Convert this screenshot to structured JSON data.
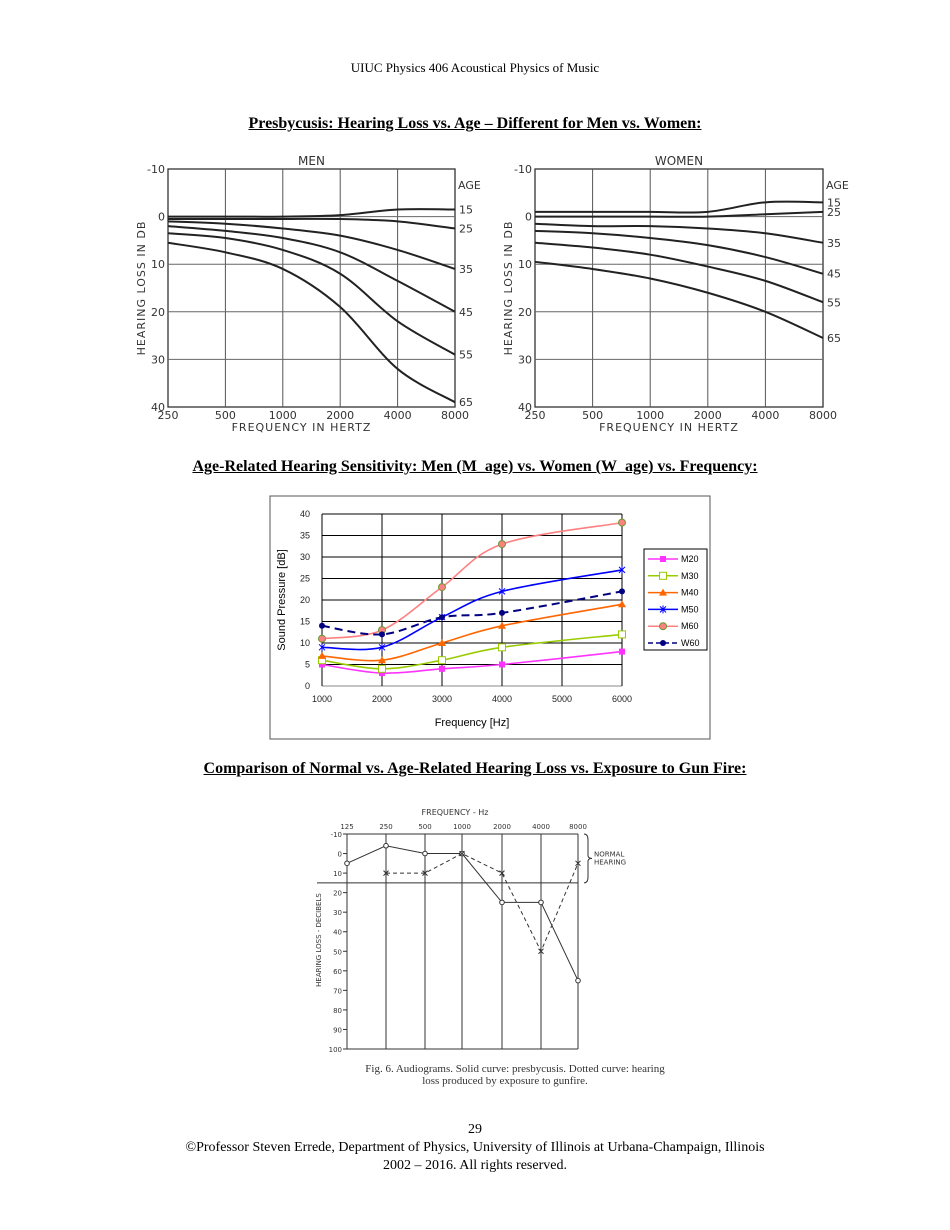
{
  "header": "UIUC Physics 406 Acoustical Physics of Music",
  "sections": [
    {
      "title": "Presbycusis: Hearing Loss vs. Age – Different for Men vs. Women:"
    },
    {
      "title": "Age-Related Hearing Sensitivity: Men (M_age) vs. Women (W_age) vs. Frequency:"
    },
    {
      "title": "Comparison of Normal vs. Age-Related Hearing Loss vs. Exposure to Gun Fire:"
    }
  ],
  "chart_data": [
    {
      "type": "line",
      "title": "MEN",
      "xlabel": "FREQUENCY IN HERTZ",
      "ylabel": "HEARING LOSS IN DB",
      "x": [
        250,
        500,
        1000,
        2000,
        4000,
        8000
      ],
      "x_scale": "log",
      "ylim": [
        -10,
        40
      ],
      "y_inverted": true,
      "yticks": [
        -10,
        0,
        10,
        20,
        30,
        40
      ],
      "legend_title": "AGE",
      "grid": true,
      "color": "#222222",
      "series": [
        {
          "name": "15",
          "values": [
            0,
            0,
            0,
            -0.3,
            -1.5,
            -1.5
          ]
        },
        {
          "name": "25",
          "values": [
            0.5,
            0.5,
            0.5,
            0.5,
            1,
            2.5
          ]
        },
        {
          "name": "35",
          "values": [
            1,
            1.5,
            2.5,
            4,
            7,
            11
          ]
        },
        {
          "name": "45",
          "values": [
            2,
            3,
            4.5,
            7.5,
            13.5,
            20
          ]
        },
        {
          "name": "55",
          "values": [
            3.5,
            4.5,
            7,
            12,
            22,
            29
          ]
        },
        {
          "name": "65",
          "values": [
            5.5,
            7.5,
            11,
            19,
            32,
            39
          ]
        }
      ]
    },
    {
      "type": "line",
      "title": "WOMEN",
      "xlabel": "FREQUENCY IN HERTZ",
      "ylabel": "HEARING LOSS IN DB",
      "x": [
        250,
        500,
        1000,
        2000,
        4000,
        8000
      ],
      "x_scale": "log",
      "ylim": [
        -10,
        40
      ],
      "y_inverted": true,
      "yticks": [
        -10,
        0,
        10,
        20,
        30,
        40
      ],
      "legend_title": "AGE",
      "grid": true,
      "color": "#222222",
      "series": [
        {
          "name": "15",
          "values": [
            -1,
            -1,
            -1,
            -1,
            -3,
            -3
          ]
        },
        {
          "name": "25",
          "values": [
            0,
            0,
            0,
            0,
            -0.5,
            -1
          ]
        },
        {
          "name": "35",
          "values": [
            1.5,
            2,
            2,
            2.5,
            3.5,
            5.5
          ]
        },
        {
          "name": "45",
          "values": [
            3,
            3.5,
            4.5,
            6,
            8.5,
            12
          ]
        },
        {
          "name": "55",
          "values": [
            5.5,
            6.5,
            8,
            10.5,
            13.5,
            18
          ]
        },
        {
          "name": "65",
          "values": [
            9.5,
            11,
            13,
            16,
            20,
            25.5
          ]
        }
      ]
    },
    {
      "type": "line",
      "title": "",
      "xlabel": "Frequency  [Hz]",
      "ylabel": "Sound Pressure [dB]",
      "xlim": [
        1000,
        6000
      ],
      "xticks": [
        1000,
        2000,
        3000,
        4000,
        5000,
        6000
      ],
      "ylim": [
        0,
        40
      ],
      "yticks": [
        0,
        5,
        10,
        15,
        20,
        25,
        30,
        35,
        40
      ],
      "grid": true,
      "legend": "right",
      "x": [
        1000,
        2000,
        3000,
        4000,
        6000
      ],
      "series": [
        {
          "name": "M20",
          "values": [
            5,
            3,
            4,
            5,
            8
          ],
          "color": "#ff33ff",
          "marker": "square",
          "dash": false
        },
        {
          "name": "M30",
          "values": [
            6,
            4,
            6,
            9,
            12
          ],
          "color": "#99cc00",
          "marker": "open-square",
          "dash": false
        },
        {
          "name": "M40",
          "values": [
            7,
            6,
            10,
            14,
            19
          ],
          "color": "#ff6600",
          "marker": "triangle",
          "dash": false
        },
        {
          "name": "M50",
          "values": [
            9,
            9,
            16,
            22,
            27
          ],
          "color": "#0000ff",
          "marker": "star",
          "dash": false
        },
        {
          "name": "M60",
          "values": [
            11,
            13,
            23,
            33,
            38
          ],
          "color": "#ff8080",
          "marker": "circle",
          "dash": false
        },
        {
          "name": "W60",
          "values": [
            14,
            12,
            16,
            17,
            22
          ],
          "color": "#000080",
          "marker": "dot",
          "dash": true
        }
      ]
    },
    {
      "type": "line",
      "title": "FREQUENCY - Hz",
      "ylabel": "HEARING LOSS - DECIBELS",
      "categories": [
        "125",
        "250",
        "500",
        "1000",
        "2000",
        "4000",
        "8000"
      ],
      "ylim": [
        -10,
        100
      ],
      "y_inverted": true,
      "yticks": [
        -10,
        0,
        10,
        20,
        30,
        40,
        50,
        60,
        70,
        80,
        90,
        100
      ],
      "band_label": "NORMAL HEARING",
      "band_range": [
        -10,
        15
      ],
      "series": [
        {
          "name": "presbycusis",
          "values": [
            5,
            -4,
            0,
            0,
            25,
            25,
            65
          ],
          "marker": "circle",
          "dash": false
        },
        {
          "name": "gunfire",
          "values": [
            null,
            10,
            10,
            0,
            10,
            50,
            5
          ],
          "marker": "x",
          "dash": true
        }
      ],
      "caption_line1": "Fig. 6. Audiograms. Solid curve: presbycusis. Dotted curve: hearing",
      "caption_line2": "loss produced by exposure to gunfire."
    }
  ],
  "footer": {
    "page_number": "29",
    "line1": "©Professor Steven Errede, Department of Physics, University of Illinois at Urbana-Champaign, Illinois",
    "line2": "2002 – 2016. All rights reserved."
  }
}
